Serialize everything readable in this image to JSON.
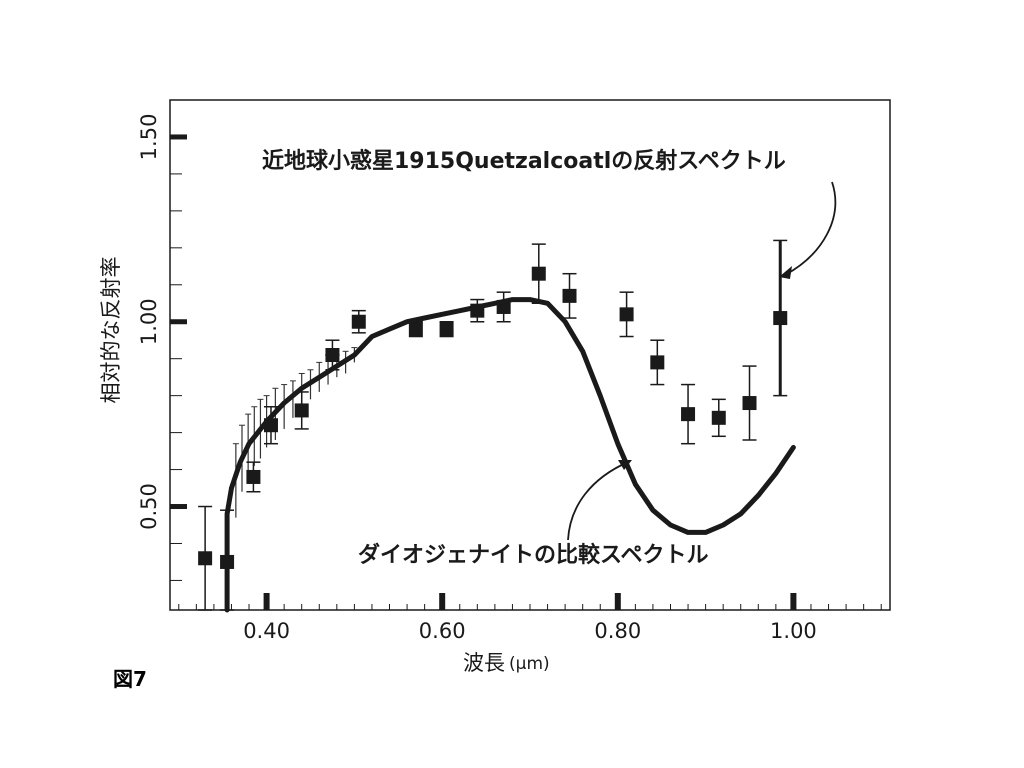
{
  "figure_label": "図7",
  "chart_data": {
    "type": "scatter",
    "xlabel": "波長",
    "xunit": "(μm)",
    "ylabel": "相対的な反射率",
    "xlim": [
      0.29,
      1.11
    ],
    "ylim": [
      0.22,
      1.6
    ],
    "x_ticks": [
      0.4,
      0.6,
      0.8,
      1.0
    ],
    "x_tick_labels": [
      "0.40",
      "0.60",
      "0.80",
      "1.00"
    ],
    "y_ticks": [
      0.5,
      1.0,
      1.5
    ],
    "y_tick_labels": [
      "0.50",
      "1.00",
      "1.50"
    ],
    "grid": false,
    "legend": "none",
    "annotations": [
      {
        "text": "近地球小惑星1915Quetzalcoatlの反射スペクトル",
        "target": "series_observed"
      },
      {
        "text": "ダイオジェナイトの比較スペクトル",
        "target": "series_comparison"
      }
    ],
    "series": [
      {
        "kind": "points_with_errorbars",
        "color": "#1a1a1a",
        "points": [
          {
            "x": 0.33,
            "y": 0.36,
            "err": 0.14
          },
          {
            "x": 0.355,
            "y": 0.35,
            "err": 0.14
          },
          {
            "x": 0.385,
            "y": 0.58,
            "err": 0.04
          },
          {
            "x": 0.405,
            "y": 0.72,
            "err": 0.05
          },
          {
            "x": 0.44,
            "y": 0.76,
            "err": 0.05
          },
          {
            "x": 0.475,
            "y": 0.91,
            "err": 0.04
          },
          {
            "x": 0.505,
            "y": 1.0,
            "err": 0.03
          },
          {
            "x": 0.57,
            "y": 0.98,
            "err": 0.02
          },
          {
            "x": 0.605,
            "y": 0.98,
            "err": 0.02
          },
          {
            "x": 0.64,
            "y": 1.03,
            "err": 0.03
          },
          {
            "x": 0.67,
            "y": 1.04,
            "err": 0.04
          },
          {
            "x": 0.71,
            "y": 1.13,
            "err": 0.08
          },
          {
            "x": 0.745,
            "y": 1.07,
            "err": 0.06
          },
          {
            "x": 0.81,
            "y": 1.02,
            "err": 0.06
          },
          {
            "x": 0.845,
            "y": 0.89,
            "err": 0.06
          },
          {
            "x": 0.88,
            "y": 0.75,
            "err": 0.08
          },
          {
            "x": 0.915,
            "y": 0.74,
            "err": 0.05
          },
          {
            "x": 0.95,
            "y": 0.78,
            "err": 0.1
          },
          {
            "x": 0.985,
            "y": 1.01,
            "err": 0.21
          }
        ],
        "dense_errorbars": [
          {
            "x": 0.365,
            "y": 0.57,
            "err": 0.1
          },
          {
            "x": 0.372,
            "y": 0.63,
            "err": 0.09
          },
          {
            "x": 0.379,
            "y": 0.66,
            "err": 0.09
          },
          {
            "x": 0.386,
            "y": 0.69,
            "err": 0.08
          },
          {
            "x": 0.393,
            "y": 0.71,
            "err": 0.08
          },
          {
            "x": 0.4,
            "y": 0.73,
            "err": 0.07
          },
          {
            "x": 0.41,
            "y": 0.75,
            "err": 0.07
          },
          {
            "x": 0.42,
            "y": 0.77,
            "err": 0.06
          },
          {
            "x": 0.43,
            "y": 0.79,
            "err": 0.05
          },
          {
            "x": 0.44,
            "y": 0.81,
            "err": 0.05
          },
          {
            "x": 0.45,
            "y": 0.83,
            "err": 0.04
          },
          {
            "x": 0.46,
            "y": 0.85,
            "err": 0.04
          },
          {
            "x": 0.47,
            "y": 0.87,
            "err": 0.04
          },
          {
            "x": 0.48,
            "y": 0.88,
            "err": 0.03
          },
          {
            "x": 0.49,
            "y": 0.89,
            "err": 0.03
          },
          {
            "x": 0.5,
            "y": 0.91,
            "err": 0.02
          }
        ]
      },
      {
        "kind": "line",
        "color": "#1a1a1a",
        "x": [
          0.355,
          0.36,
          0.37,
          0.38,
          0.39,
          0.4,
          0.42,
          0.44,
          0.46,
          0.48,
          0.5,
          0.52,
          0.54,
          0.56,
          0.58,
          0.6,
          0.62,
          0.64,
          0.66,
          0.68,
          0.7,
          0.72,
          0.74,
          0.76,
          0.78,
          0.8,
          0.82,
          0.84,
          0.86,
          0.88,
          0.9,
          0.92,
          0.94,
          0.96,
          0.98,
          1.0
        ],
        "y": [
          0.48,
          0.55,
          0.62,
          0.67,
          0.7,
          0.73,
          0.78,
          0.82,
          0.85,
          0.88,
          0.91,
          0.96,
          0.98,
          1.0,
          1.01,
          1.02,
          1.03,
          1.04,
          1.05,
          1.06,
          1.06,
          1.05,
          1.0,
          0.92,
          0.8,
          0.67,
          0.56,
          0.49,
          0.45,
          0.43,
          0.43,
          0.45,
          0.48,
          0.53,
          0.59,
          0.66
        ]
      }
    ]
  }
}
